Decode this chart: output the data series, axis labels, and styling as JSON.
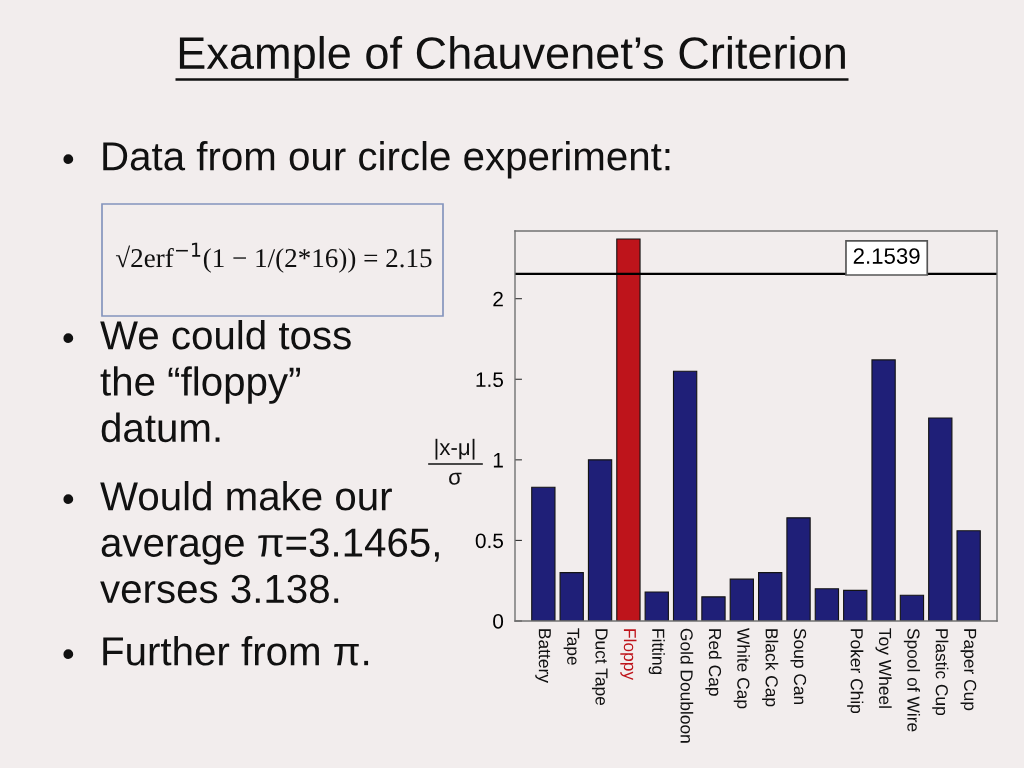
{
  "chart_data": {
    "type": "bar",
    "title": "Example of Chauvenet’s Criterion",
    "ylabel": "|x-μ|\nσ",
    "categories": [
      "Battery",
      "Tape",
      "Duct Tape",
      "Floppy",
      "Fitting",
      "Gold Doubloon",
      "Red Cap",
      "White Cap",
      "Black Cap",
      "Soup Can",
      null,
      "Poker Chip",
      "Toy Wheel",
      "Spool of Wire",
      "Plastic Cup",
      "Paper Cup"
    ],
    "values": [
      0.83,
      0.3,
      1.0,
      2.37,
      0.18,
      1.55,
      0.15,
      0.26,
      0.3,
      0.64,
      0.2,
      0.19,
      1.62,
      0.16,
      1.26,
      0.56
    ],
    "color": "#1f1f78",
    "colors": [
      "#1f1f78",
      "#1f1f78",
      "#1f1f78",
      "#be141b",
      "#1f1f78",
      "#1f1f78",
      "#1f1f78",
      "#1f1f78",
      "#1f1f78",
      "#1f1f78",
      "#1f1f78",
      "#1f1f78",
      "#1f1f78",
      "#1f1f78",
      "#1f1f78",
      "#1f1f78"
    ],
    "ylim": [
      0,
      2.42
    ],
    "yticks": [
      0,
      0.5,
      1,
      1.5,
      2
    ],
    "ref_lines": [
      {
        "axis": "y",
        "value": 2.1539,
        "label": "2.1539",
        "color": "#000000",
        "line_style": "solid"
      }
    ],
    "annotations": [
      "• Data from our circle experiment:",
      "√2erf$^{−1}$(1 − 1/(2*16)) = 2.15",
      "• We could toss\nthe “floppy”\ndatum.",
      "• Would make our\naverage π=3.1465,\nverses 3.138.",
      "• Further from π."
    ]
  }
}
